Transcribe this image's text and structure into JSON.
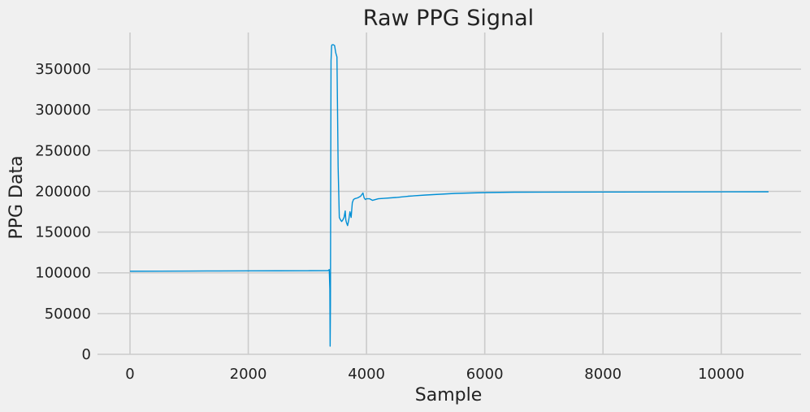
{
  "colors": {
    "background": "#f0f0f0",
    "grid": "#cbcbcb",
    "line": "#008fd5",
    "text": "#222222"
  },
  "chart_data": {
    "type": "line",
    "title": "Raw PPG Signal",
    "xlabel": "Sample",
    "ylabel": "PPG Data",
    "xlim": [
      -550,
      11350
    ],
    "ylim": [
      0,
      395000
    ],
    "xticks": [
      0,
      2000,
      4000,
      6000,
      8000,
      10000
    ],
    "xtick_labels": [
      "0",
      "2000",
      "4000",
      "6000",
      "8000",
      "10000"
    ],
    "yticks": [
      0,
      50000,
      100000,
      150000,
      200000,
      250000,
      300000,
      350000
    ],
    "ytick_labels": [
      "0",
      "50000",
      "100000",
      "150000",
      "200000",
      "250000",
      "300000",
      "350000"
    ],
    "grid": true,
    "series": [
      {
        "x": [
          0,
          500,
          1000,
          1500,
          2000,
          2500,
          3000,
          3350,
          3370,
          3380,
          3385,
          3390,
          3395,
          3400,
          3410,
          3420,
          3440,
          3460,
          3480,
          3500,
          3510,
          3520,
          3540,
          3560,
          3580,
          3600,
          3620,
          3640,
          3650,
          3660,
          3680,
          3700,
          3720,
          3740,
          3760,
          3780,
          3800,
          3850,
          3900,
          3940,
          3960,
          3980,
          4000,
          4050,
          4100,
          4150,
          4200,
          4300,
          4500,
          4700,
          5000,
          5500,
          6000,
          6500,
          7000,
          8000,
          9000,
          10000,
          10800
        ],
        "values": [
          102000,
          102100,
          102200,
          102300,
          102400,
          102500,
          102600,
          102700,
          104000,
          80000,
          10000,
          60000,
          230000,
          360000,
          379000,
          380000,
          380000,
          379000,
          370000,
          365000,
          300000,
          230000,
          168000,
          165000,
          163000,
          165000,
          168000,
          176000,
          165000,
          162000,
          158000,
          165000,
          175000,
          168000,
          186000,
          190000,
          191000,
          192000,
          194000,
          198000,
          192000,
          190000,
          191000,
          191000,
          189000,
          190000,
          191000,
          191500,
          192500,
          194000,
          195500,
          197500,
          198500,
          199000,
          199100,
          199200,
          199300,
          199400,
          199500
        ]
      }
    ]
  }
}
